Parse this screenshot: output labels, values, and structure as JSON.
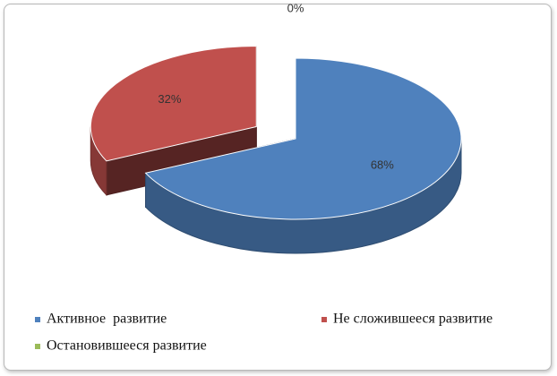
{
  "chart_data": {
    "type": "pie",
    "categories": [
      "Активное  развитие",
      "Не сложившееся развитие",
      "Остановившееся развитие"
    ],
    "values": [
      68,
      32,
      0
    ],
    "value_labels": [
      "68%",
      "32%",
      "0%"
    ],
    "colors": [
      "#4f81bd",
      "#c0504d",
      "#9bbb59"
    ],
    "legend": "bottom"
  }
}
